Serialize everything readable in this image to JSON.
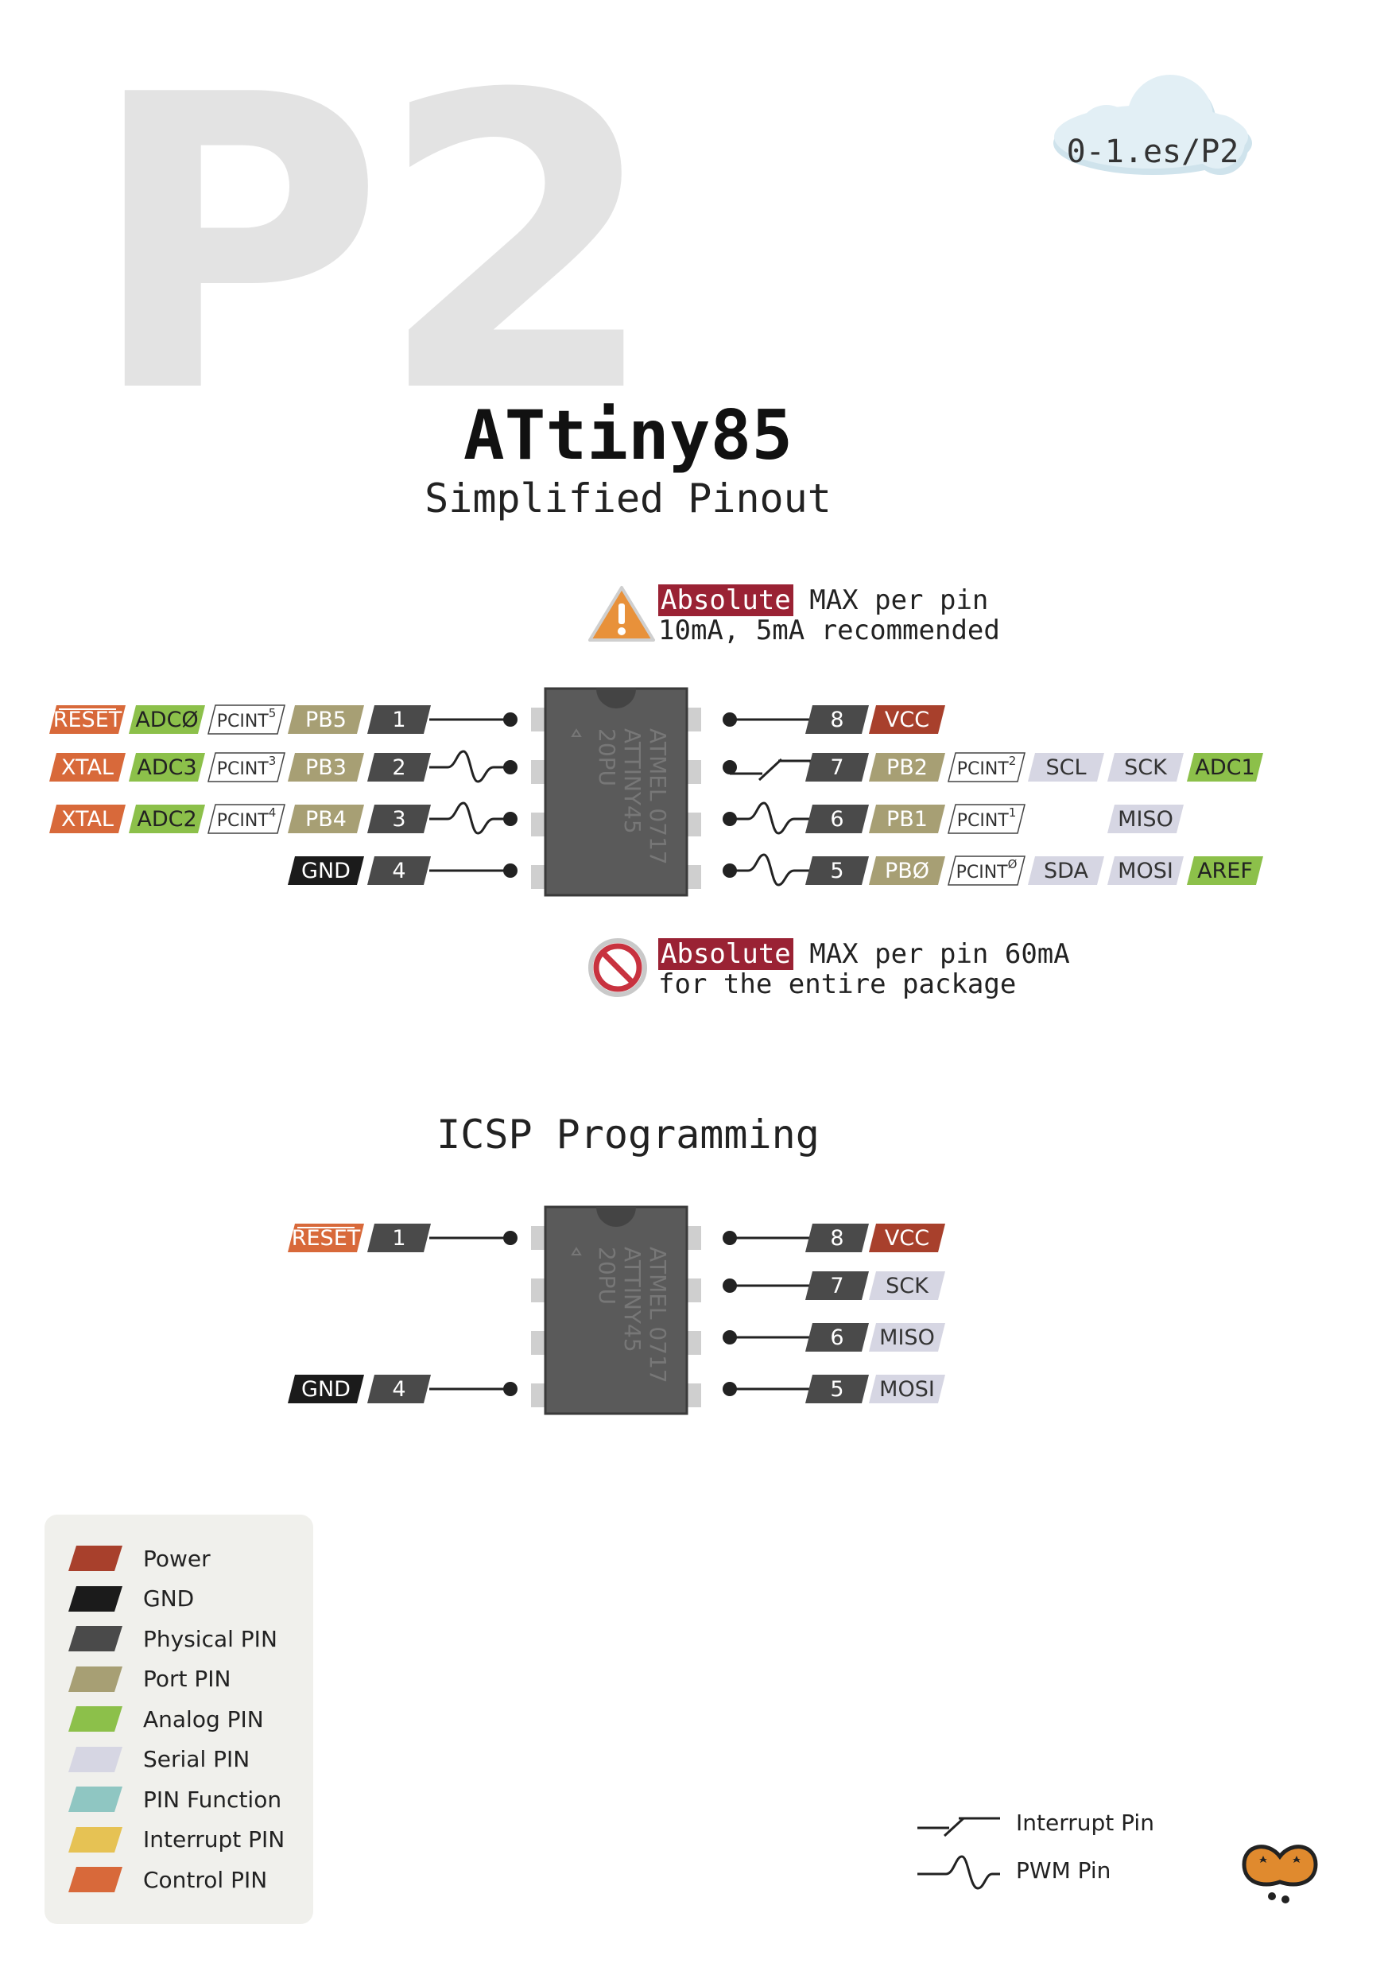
{
  "header": {
    "big_label": "P2",
    "url": "0-1.es/P2"
  },
  "title": "ATtiny85",
  "subtitle": "Simplified Pinout",
  "warning": {
    "highlight": "Absolute",
    "line1_rest": " MAX per pin",
    "line2": "10mA, 5mA recommended"
  },
  "danger": {
    "highlight": "Absolute",
    "line1_rest": " MAX per pin 60mA",
    "line2": "for the entire package"
  },
  "chip_marking": {
    "brand": "ATMEL",
    "code": "0717",
    "part": "ATTINY45",
    "pkg": "20PU"
  },
  "pinout": {
    "left": [
      {
        "pin": "1",
        "line": "plain",
        "labels": [
          {
            "text": "RESET",
            "cls": "control",
            "overline": true
          },
          {
            "text": "ADCØ",
            "cls": "analog"
          },
          {
            "text": "PCINT",
            "sup": "5",
            "cls": "interrupt_outline"
          },
          {
            "text": "PB5",
            "cls": "port"
          }
        ]
      },
      {
        "pin": "2",
        "line": "pwm",
        "labels": [
          {
            "text": "XTAL",
            "cls": "control"
          },
          {
            "text": "ADC3",
            "cls": "analog"
          },
          {
            "text": "PCINT",
            "sup": "3",
            "cls": "interrupt_outline"
          },
          {
            "text": "PB3",
            "cls": "port"
          }
        ]
      },
      {
        "pin": "3",
        "line": "pwm",
        "labels": [
          {
            "text": "XTAL",
            "cls": "control"
          },
          {
            "text": "ADC2",
            "cls": "analog"
          },
          {
            "text": "PCINT",
            "sup": "4",
            "cls": "interrupt_outline"
          },
          {
            "text": "PB4",
            "cls": "port"
          }
        ]
      },
      {
        "pin": "4",
        "line": "plain",
        "labels": [
          {
            "text": "GND",
            "cls": "gnd"
          }
        ]
      }
    ],
    "right": [
      {
        "pin": "8",
        "line": "plain",
        "labels": [
          {
            "text": "VCC",
            "cls": "power"
          }
        ]
      },
      {
        "pin": "7",
        "line": "interrupt",
        "labels": [
          {
            "text": "PB2",
            "cls": "port"
          },
          {
            "text": "PCINT",
            "sup": "2",
            "cls": "interrupt_outline"
          },
          {
            "text": "SCL",
            "cls": "serial"
          },
          {
            "text": "SCK",
            "cls": "serial"
          },
          {
            "text": "ADC1",
            "cls": "analog"
          }
        ]
      },
      {
        "pin": "6",
        "line": "pwm",
        "labels": [
          {
            "text": "PB1",
            "cls": "port"
          },
          {
            "text": "PCINT",
            "sup": "1",
            "cls": "interrupt_outline"
          },
          {
            "text": "",
            "cls": "none"
          },
          {
            "text": "MISO",
            "cls": "serial"
          }
        ]
      },
      {
        "pin": "5",
        "line": "pwm",
        "labels": [
          {
            "text": "PBØ",
            "cls": "port"
          },
          {
            "text": "PCINT",
            "sup": "Ø",
            "cls": "interrupt_outline"
          },
          {
            "text": "SDA",
            "cls": "serial"
          },
          {
            "text": "MOSI",
            "cls": "serial"
          },
          {
            "text": "AREF",
            "cls": "analog"
          }
        ]
      }
    ]
  },
  "icsp": {
    "title": "ICSP Programming",
    "left": [
      {
        "pin": "1",
        "labels": [
          {
            "text": "RESET",
            "cls": "control",
            "overline": true
          }
        ]
      },
      {
        "pin": "4",
        "labels": [
          {
            "text": "GND",
            "cls": "gnd"
          }
        ]
      }
    ],
    "right": [
      {
        "pin": "8",
        "labels": [
          {
            "text": "VCC",
            "cls": "power"
          }
        ]
      },
      {
        "pin": "7",
        "labels": [
          {
            "text": "SCK",
            "cls": "serial"
          }
        ]
      },
      {
        "pin": "6",
        "labels": [
          {
            "text": "MISO",
            "cls": "serial"
          }
        ]
      },
      {
        "pin": "5",
        "labels": [
          {
            "text": "MOSI",
            "cls": "serial"
          }
        ]
      }
    ]
  },
  "legend": [
    {
      "label": "Power",
      "color": "#a8402c"
    },
    {
      "label": "GND",
      "color": "#1b1b1b"
    },
    {
      "label": "Physical PIN",
      "color": "#4a4a4a"
    },
    {
      "label": "Port PIN",
      "color": "#a79f74"
    },
    {
      "label": "Analog PIN",
      "color": "#8cc04a"
    },
    {
      "label": "Serial PIN",
      "color": "#d6d6e3"
    },
    {
      "label": "PIN Function",
      "color": "#8fc6c2"
    },
    {
      "label": "Interrupt PIN",
      "color": "#e6c254"
    },
    {
      "label": "Control PIN",
      "color": "#d8693a"
    }
  ],
  "line_legend": {
    "interrupt": "Interrupt Pin",
    "pwm": "PWM Pin"
  },
  "colors": {
    "power": "#a8402c",
    "gnd": "#1b1b1b",
    "physical": "#4a4a4a",
    "port": "#a79f74",
    "analog": "#8cc04a",
    "serial": "#d6d6e3",
    "control": "#d8693a",
    "chip": "#5a5a5a",
    "cloud": "#dcecf3"
  }
}
